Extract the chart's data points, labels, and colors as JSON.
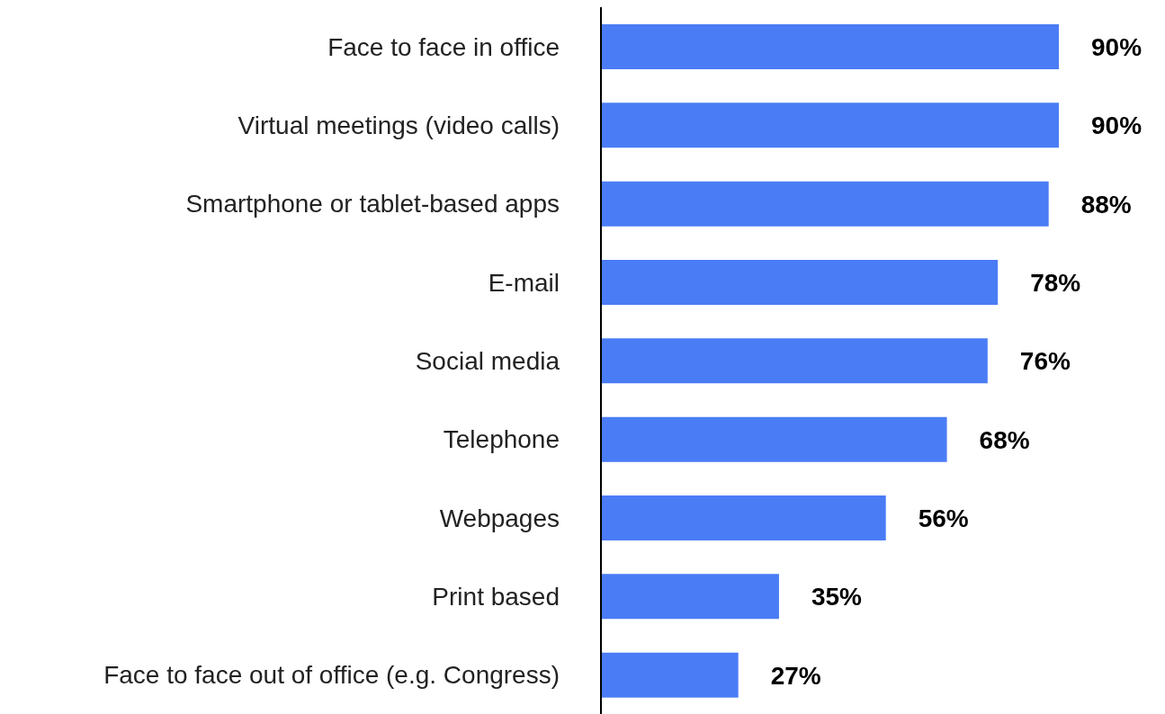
{
  "chart_data": {
    "type": "bar",
    "orientation": "horizontal",
    "categories": [
      "Face to face in office",
      "Virtual meetings (video calls)",
      "Smartphone or tablet-based apps",
      "E-mail",
      "Social media",
      "Telephone",
      "Webpages",
      "Print based",
      "Face to face out of office (e.g. Congress)"
    ],
    "values": [
      90,
      90,
      88,
      78,
      76,
      68,
      56,
      35,
      27
    ],
    "value_labels": [
      "90%",
      "90%",
      "88%",
      "78%",
      "76%",
      "68%",
      "56%",
      "35%",
      "27%"
    ],
    "color": "#4a7cf5"
  }
}
